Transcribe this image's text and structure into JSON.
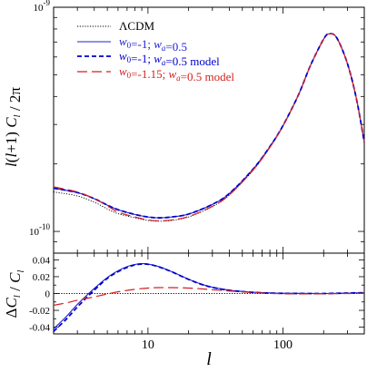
{
  "chart_data": [
    {
      "type": "line",
      "panel": "top",
      "ylabel": "l(l+1) C_l / 2π",
      "xlabel": "",
      "xscale": "log",
      "yscale": "log",
      "xlim": [
        2,
        400
      ],
      "ylim": [
        8e-11,
        1e-09
      ],
      "yticks": [
        {
          "value": 1e-10,
          "label_base": "10",
          "label_exp": "-10"
        },
        {
          "value": 1e-09,
          "label_base": "10",
          "label_exp": "-9"
        }
      ],
      "legend": {
        "placement": "top-left",
        "entries": [
          {
            "series": 0,
            "text": "ΛCDM"
          },
          {
            "series": 1,
            "text": "w_0=-1; w_a=0.5"
          },
          {
            "series": 2,
            "text": "w_0=-1; w_a=0.5 model"
          },
          {
            "series": 3,
            "text": "w_0=-1.15; w_a=0.5 model"
          }
        ]
      },
      "series": [
        {
          "name": "ΛCDM",
          "color": "#000000",
          "dash": "dotted",
          "x": [
            2,
            3,
            4,
            5,
            6,
            8,
            10,
            12,
            15,
            20,
            30,
            40,
            60,
            80,
            100,
            130,
            160,
            200,
            220,
            250,
            300,
            350,
            400
          ],
          "y": [
            1.5e-10,
            1.44e-10,
            1.35e-10,
            1.26e-10,
            1.2e-10,
            1.15e-10,
            1.12e-10,
            1.11e-10,
            1.12e-10,
            1.16e-10,
            1.29e-10,
            1.45e-10,
            1.87e-10,
            2.37e-10,
            2.95e-10,
            4.05e-10,
            5.5e-10,
            7.2e-10,
            7.6e-10,
            7.3e-10,
            5.6e-10,
            3.9e-10,
            2.5e-10
          ]
        },
        {
          "name": "w_0=-1; w_a=0.5",
          "color": "#2020d0",
          "dash": "solid",
          "x": [
            2,
            3,
            4,
            5,
            6,
            8,
            10,
            12,
            15,
            20,
            30,
            40,
            60,
            80,
            100,
            130,
            160,
            200,
            220,
            250,
            300,
            350,
            400
          ],
          "y": [
            1.56e-10,
            1.49e-10,
            1.4e-10,
            1.31e-10,
            1.25e-10,
            1.19e-10,
            1.16e-10,
            1.15e-10,
            1.16e-10,
            1.195e-10,
            1.32e-10,
            1.475e-10,
            1.895e-10,
            2.39e-10,
            2.965e-10,
            4.06e-10,
            5.51e-10,
            7.21e-10,
            7.61e-10,
            7.31e-10,
            5.61e-10,
            3.9e-10,
            2.5e-10
          ]
        },
        {
          "name": "w_0=-1; w_a=0.5 model",
          "color": "#0000cc",
          "dash": "dashed",
          "x": [
            2,
            3,
            4,
            5,
            6,
            8,
            10,
            12,
            15,
            20,
            30,
            40,
            60,
            80,
            100,
            130,
            160,
            200,
            220,
            250,
            300,
            350,
            400
          ],
          "y": [
            1.56e-10,
            1.49e-10,
            1.4e-10,
            1.31e-10,
            1.25e-10,
            1.19e-10,
            1.16e-10,
            1.15e-10,
            1.16e-10,
            1.195e-10,
            1.32e-10,
            1.475e-10,
            1.895e-10,
            2.39e-10,
            2.965e-10,
            4.06e-10,
            5.51e-10,
            7.21e-10,
            7.61e-10,
            7.31e-10,
            5.61e-10,
            3.9e-10,
            2.5e-10
          ]
        },
        {
          "name": "w_0=-1.15; w_a=0.5 model",
          "color": "#d42020",
          "dash": "longdash",
          "x": [
            2,
            3,
            4,
            5,
            6,
            8,
            10,
            12,
            15,
            20,
            30,
            40,
            60,
            80,
            100,
            130,
            160,
            200,
            220,
            250,
            300,
            350,
            400
          ],
          "y": [
            1.58e-10,
            1.5e-10,
            1.4e-10,
            1.3e-10,
            1.22e-10,
            1.16e-10,
            1.125e-10,
            1.115e-10,
            1.125e-10,
            1.165e-10,
            1.295e-10,
            1.455e-10,
            1.88e-10,
            2.375e-10,
            2.955e-10,
            4.055e-10,
            5.505e-10,
            7.205e-10,
            7.605e-10,
            7.305e-10,
            5.605e-10,
            3.9e-10,
            2.5e-10
          ]
        }
      ]
    },
    {
      "type": "line",
      "panel": "bottom",
      "ylabel": "ΔC_l / C_l",
      "xlabel": "l",
      "xscale": "log",
      "xlim": [
        2,
        400
      ],
      "ylim": [
        -0.048,
        0.048
      ],
      "xticks": [
        10,
        100
      ],
      "xtick_labels": [
        "10",
        "100"
      ],
      "yticks": [
        -0.04,
        -0.02,
        0,
        0.02,
        0.04
      ],
      "ytick_labels": [
        "-0.04",
        "-0.02",
        "0",
        "0.02",
        "0.04"
      ],
      "series": [
        {
          "name": "zero line",
          "color": "#000000",
          "dash": "dotted",
          "x": [
            2,
            400
          ],
          "y": [
            0,
            0
          ]
        },
        {
          "name": "w_0=-1; w_a=0.5",
          "color": "#2020d0",
          "dash": "solid",
          "x": [
            2,
            2.5,
            3,
            4,
            5,
            6,
            7,
            8,
            9,
            10,
            12,
            15,
            20,
            25,
            30,
            40,
            50,
            60,
            80,
            100,
            150,
            200,
            300,
            400
          ],
          "y": [
            -0.042,
            -0.027,
            -0.013,
            0.006,
            0.019,
            0.027,
            0.032,
            0.0345,
            0.0355,
            0.035,
            0.032,
            0.026,
            0.017,
            0.011,
            0.0075,
            0.004,
            0.0025,
            0.0015,
            0.0007,
            0.0003,
            0.0001,
            0,
            0.0005,
            0.001
          ]
        },
        {
          "name": "w_0=-1; w_a=0.5 model",
          "color": "#0000cc",
          "dash": "dashed",
          "x": [
            2,
            2.5,
            3,
            4,
            5,
            6,
            7,
            8,
            9,
            10,
            12,
            15,
            20,
            25,
            30,
            40,
            50,
            60,
            80,
            100,
            150,
            200,
            300,
            400
          ],
          "y": [
            -0.045,
            -0.03,
            -0.016,
            0.004,
            0.018,
            0.026,
            0.031,
            0.034,
            0.035,
            0.0348,
            0.0318,
            0.0258,
            0.0168,
            0.0108,
            0.0073,
            0.0038,
            0.0023,
            0.0013,
            0.0005,
            0.0002,
            0,
            0,
            0.0005,
            0.001
          ]
        },
        {
          "name": "w_0=-1.15; w_a=0.5 model",
          "color": "#d42020",
          "dash": "longdash",
          "x": [
            2,
            2.5,
            3,
            4,
            5,
            6,
            8,
            10,
            12,
            15,
            20,
            25,
            30,
            40,
            50,
            60,
            80,
            100,
            150,
            200,
            300,
            400
          ],
          "y": [
            -0.014,
            -0.011,
            -0.008,
            -0.004,
            -0.0005,
            0.002,
            0.005,
            0.0065,
            0.007,
            0.007,
            0.0065,
            0.0055,
            0.0045,
            0.003,
            0.002,
            0.001,
            0.0002,
            -0.0003,
            -0.0005,
            -0.0003,
            0,
            0.0003
          ]
        }
      ]
    }
  ]
}
